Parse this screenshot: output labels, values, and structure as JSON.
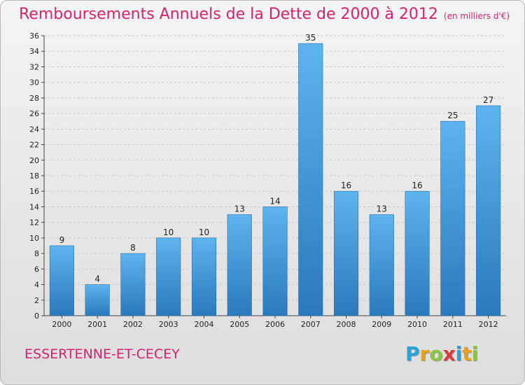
{
  "page": {
    "title": "Remboursements Annuels de la Dette de 2000 à 2012",
    "unit": "(en milliers d'€)",
    "commune": "ESSERTENNE-ET-CECEY",
    "logo": {
      "letters": [
        "P",
        "r",
        "o",
        "x",
        "i",
        "t",
        "i"
      ],
      "colors": [
        "#2aa3d8",
        "#e8a21b",
        "#8cc540",
        "#d93b3b",
        "#2aa3d8",
        "#e8a21b",
        "#8cc540"
      ]
    }
  },
  "chart_data": {
    "type": "bar",
    "title": "Remboursements Annuels de la Dette de 2000 à 2012",
    "subtitle": "(en milliers d'€)",
    "categories": [
      "2000",
      "2001",
      "2002",
      "2003",
      "2004",
      "2005",
      "2006",
      "2007",
      "2008",
      "2009",
      "2010",
      "2011",
      "2012"
    ],
    "values": [
      9,
      4,
      8,
      10,
      10,
      13,
      14,
      35,
      16,
      13,
      16,
      25,
      27
    ],
    "ylim": [
      0,
      36
    ],
    "yticks": [
      0,
      2,
      4,
      6,
      8,
      10,
      12,
      14,
      16,
      18,
      20,
      22,
      24,
      26,
      28,
      30,
      32,
      34,
      36
    ],
    "grid": true,
    "bar_color": "#3f9fe2"
  }
}
